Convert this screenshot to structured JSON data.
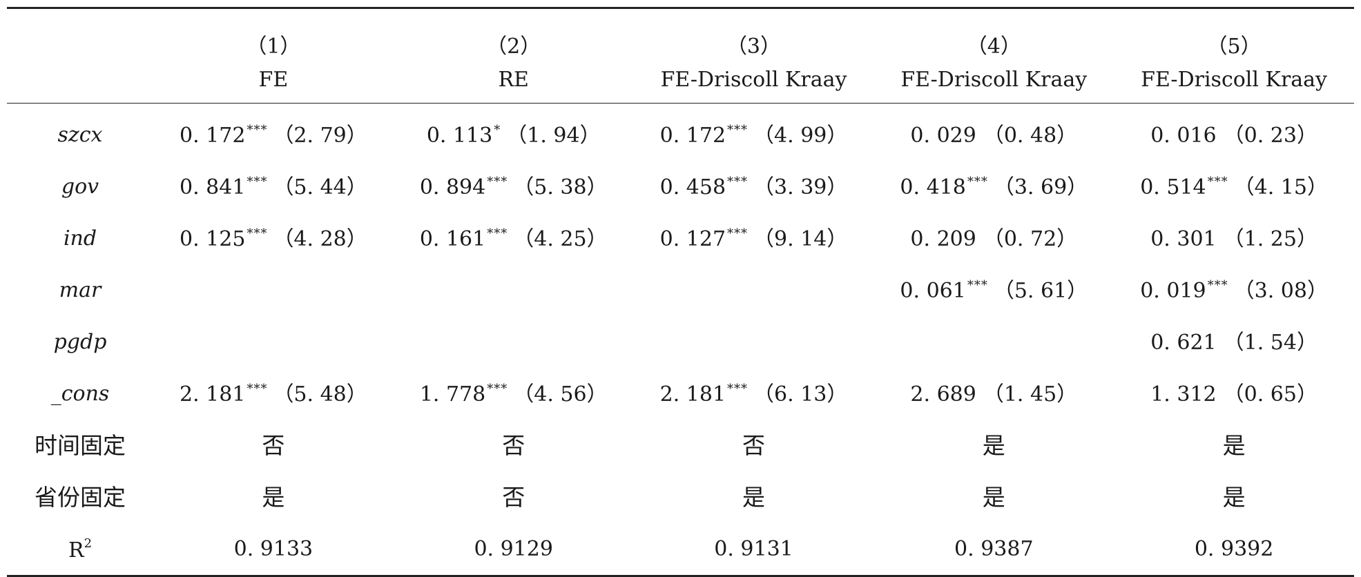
{
  "columns": [
    {
      "num": "（1）",
      "model": "FE"
    },
    {
      "num": "（2）",
      "model": "RE"
    },
    {
      "num": "（3）",
      "model": "FE-Driscoll Kraay"
    },
    {
      "num": "（4）",
      "model": "FE-Driscoll Kraay"
    },
    {
      "num": "（5）",
      "model": "FE-Driscoll Kraay"
    }
  ],
  "rows": [
    {
      "label": "szcx",
      "cells": [
        {
          "coef": "0. 172",
          "stars": "***",
          "t": "（2. 79）"
        },
        {
          "coef": "0. 113",
          "stars": "*",
          "t": "（1. 94）"
        },
        {
          "coef": "0. 172",
          "stars": "***",
          "t": "（4. 99）"
        },
        {
          "coef": "0. 029",
          "stars": "",
          "t": "（0. 48）"
        },
        {
          "coef": "0. 016",
          "stars": "",
          "t": "（0. 23）"
        }
      ]
    },
    {
      "label": "gov",
      "cells": [
        {
          "coef": "0. 841",
          "stars": "***",
          "t": "（5. 44）"
        },
        {
          "coef": "0. 894",
          "stars": "***",
          "t": "（5. 38）"
        },
        {
          "coef": "0. 458",
          "stars": "***",
          "t": "（3. 39）"
        },
        {
          "coef": "0. 418",
          "stars": "***",
          "t": "（3. 69）"
        },
        {
          "coef": "0. 514",
          "stars": "***",
          "t": "（4. 15）"
        }
      ]
    },
    {
      "label": "ind",
      "cells": [
        {
          "coef": "0. 125",
          "stars": "***",
          "t": "（4. 28）"
        },
        {
          "coef": "0. 161",
          "stars": "***",
          "t": "（4. 25）"
        },
        {
          "coef": "0. 127",
          "stars": "***",
          "t": "（9. 14）"
        },
        {
          "coef": "0. 209",
          "stars": "",
          "t": "（0. 72）"
        },
        {
          "coef": "0. 301",
          "stars": "",
          "t": "（1. 25）"
        }
      ]
    },
    {
      "label": "mar",
      "cells": [
        {
          "coef": "",
          "stars": "",
          "t": ""
        },
        {
          "coef": "",
          "stars": "",
          "t": ""
        },
        {
          "coef": "",
          "stars": "",
          "t": ""
        },
        {
          "coef": "0. 061",
          "stars": "***",
          "t": "（5. 61）"
        },
        {
          "coef": "0. 019",
          "stars": "***",
          "t": "（3. 08）"
        }
      ]
    },
    {
      "label": "pgdp",
      "cells": [
        {
          "coef": "",
          "stars": "",
          "t": ""
        },
        {
          "coef": "",
          "stars": "",
          "t": ""
        },
        {
          "coef": "",
          "stars": "",
          "t": ""
        },
        {
          "coef": "",
          "stars": "",
          "t": ""
        },
        {
          "coef": "0. 621",
          "stars": "",
          "t": "（1. 54）"
        }
      ]
    },
    {
      "label": "_cons",
      "cells": [
        {
          "coef": "2. 181",
          "stars": "***",
          "t": "（5. 48）"
        },
        {
          "coef": "1. 778",
          "stars": "***",
          "t": "（4. 56）"
        },
        {
          "coef": "2. 181",
          "stars": "***",
          "t": "（6. 13）"
        },
        {
          "coef": "2. 689",
          "stars": "",
          "t": "（1. 45）"
        },
        {
          "coef": "1. 312",
          "stars": "",
          "t": "（0. 65）"
        }
      ]
    }
  ],
  "time_fixed": {
    "label": "时间固定",
    "values": [
      "否",
      "否",
      "否",
      "是",
      "是"
    ]
  },
  "province_fixed": {
    "label": "省份固定",
    "values": [
      "是",
      "否",
      "是",
      "是",
      "是"
    ]
  },
  "r2": {
    "label": "R",
    "sup": "2",
    "values": [
      "0. 9133",
      "0. 9129",
      "0. 9131",
      "0. 9387",
      "0. 9392"
    ]
  }
}
